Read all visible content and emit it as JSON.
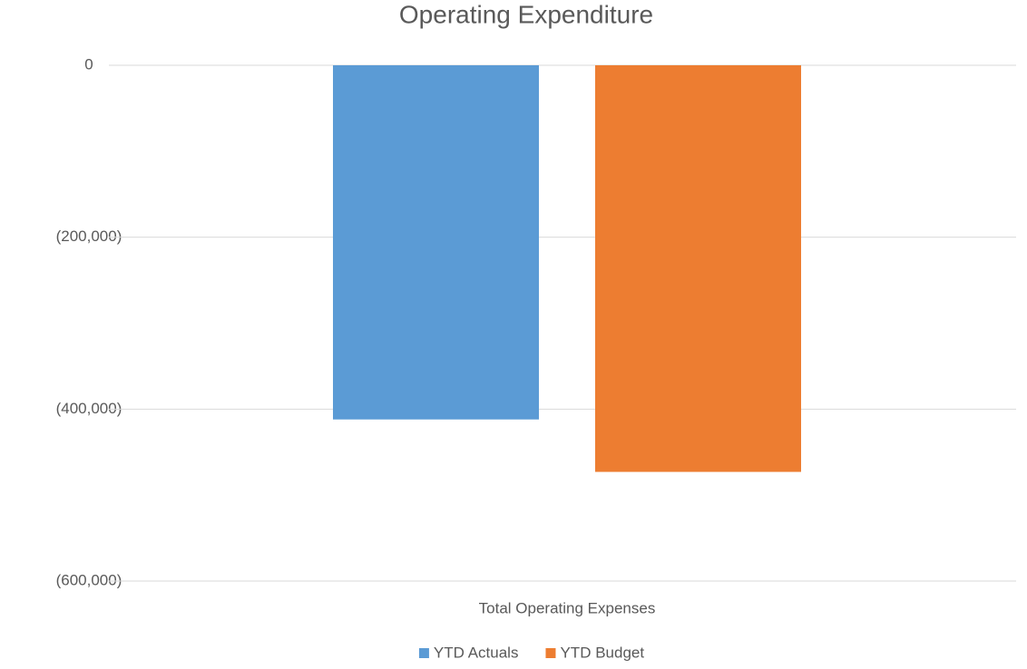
{
  "chart_data": {
    "type": "bar",
    "title": "Operating Expenditure",
    "categories": [
      "Total Operating Expenses"
    ],
    "series": [
      {
        "name": "YTD Actuals",
        "color": "#5b9bd5",
        "values": [
          -412000
        ]
      },
      {
        "name": "YTD Budget",
        "color": "#ed7d31",
        "values": [
          -473000
        ]
      }
    ],
    "ylim": [
      -600000,
      0
    ],
    "yticks": [
      0,
      {
        "value": -200000,
        "label": "(200,000)"
      },
      {
        "value": -400000,
        "label": "(400,000)"
      },
      {
        "value": -600000,
        "label": "(600,000)"
      }
    ],
    "grid": true,
    "legend": "bottom"
  }
}
